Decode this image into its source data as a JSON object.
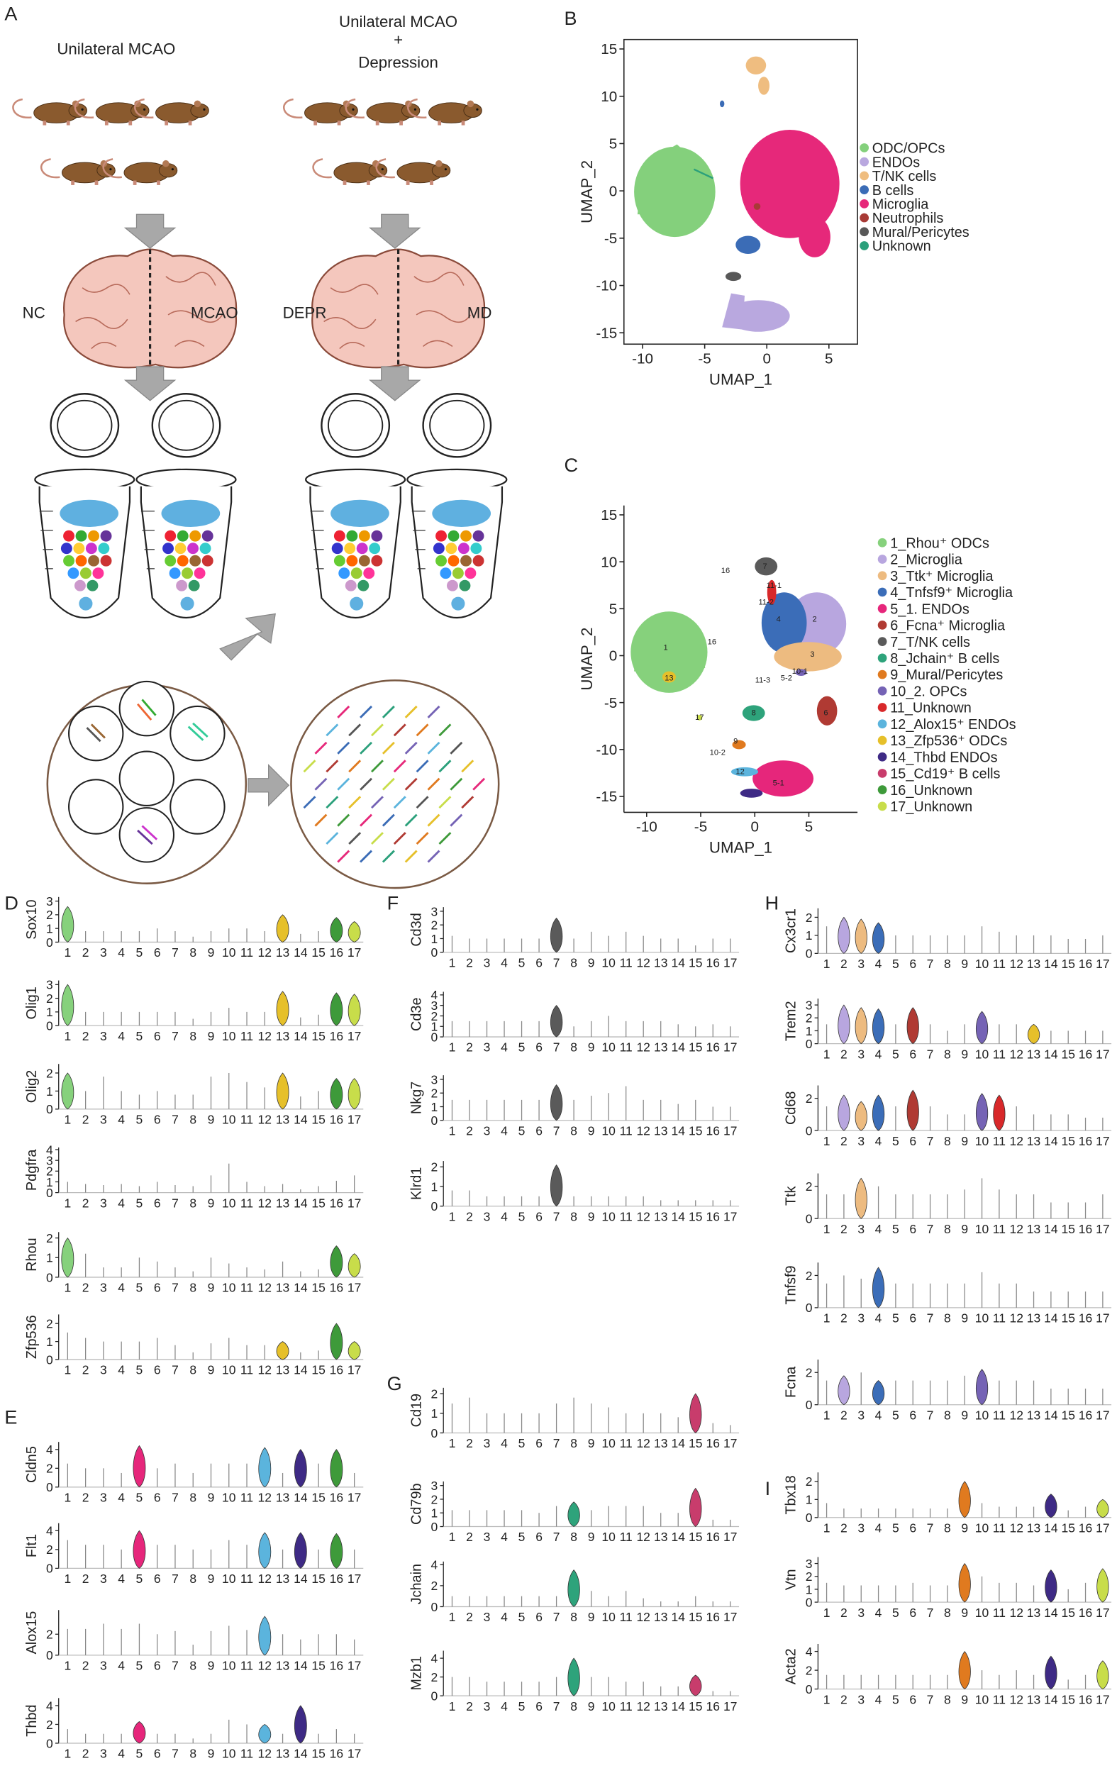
{
  "panel_a": {
    "label": "A",
    "left_title": "Unilateral MCAO",
    "right_title_1": "Unilateral MCAO",
    "right_title_2": "+",
    "right_title_3": "Depression",
    "brain_left_1": "NC",
    "brain_left_2": "MCAO",
    "brain_right_1": "DEPR",
    "brain_right_2": "MD"
  },
  "panel_b": {
    "label": "B",
    "xlabel": "UMAP_1",
    "ylabel": "UMAP_2",
    "xlim": [
      -11.5,
      7.3
    ],
    "ylim": [
      -16.2,
      16
    ],
    "xticks": [
      -10,
      -5,
      0,
      5
    ],
    "yticks": [
      -15,
      -10,
      -5,
      0,
      5,
      10,
      15
    ],
    "legend": [
      {
        "name": "ODC/OPCs",
        "color": "#84d07c"
      },
      {
        "name": "ENDOs",
        "color": "#b9a8df"
      },
      {
        "name": "T/NK cells",
        "color": "#efbd80"
      },
      {
        "name": "B cells",
        "color": "#3b6cb6"
      },
      {
        "name": "Microglia",
        "color": "#e6287a"
      },
      {
        "name": "Neutrophils",
        "color": "#a83a36"
      },
      {
        "name": "Mural/Pericytes",
        "color": "#585858"
      },
      {
        "name": "Unknown",
        "color": "#2ba07b"
      }
    ]
  },
  "panel_c": {
    "label": "C",
    "xlabel": "UMAP_1",
    "ylabel": "UMAP_2",
    "xlim": [
      -12.1,
      9.5
    ],
    "ylim": [
      -16.7,
      16
    ],
    "xticks": [
      -10,
      -5,
      0,
      5
    ],
    "yticks": [
      -15,
      -10,
      -5,
      0,
      5,
      10,
      15
    ],
    "cluster_labels": [
      "7",
      "11-1",
      "16",
      "11-2",
      "4",
      "2",
      "3",
      "1",
      "16",
      "13",
      "11-3",
      "5-2",
      "10-1",
      "6",
      "17",
      "8",
      "9",
      "10-2",
      "12",
      "5-1"
    ],
    "legend": [
      {
        "name": "1_Rhou⁺ ODCs",
        "color": "#86d17c"
      },
      {
        "name": "2_Microglia",
        "color": "#b8a6df"
      },
      {
        "name": "3_Ttk⁺ Microglia",
        "color": "#edbb80"
      },
      {
        "name": "4_Tnfsf9⁺ Microglia",
        "color": "#3b6db8"
      },
      {
        "name": "5_1. ENDOs",
        "color": "#e6267b"
      },
      {
        "name": "6_Fcna⁺ Microglia",
        "color": "#b03a33"
      },
      {
        "name": "7_T/NK cells",
        "color": "#5a5a5a"
      },
      {
        "name": "8_Jchain⁺ B cells",
        "color": "#2ea37b"
      },
      {
        "name": "9_Mural/Pericytes",
        "color": "#e07a1f"
      },
      {
        "name": "10_2. OPCs",
        "color": "#7563b5"
      },
      {
        "name": "11_Unknown",
        "color": "#d8282a"
      },
      {
        "name": "12_Alox15⁺ ENDOs",
        "color": "#5bb4dd"
      },
      {
        "name": "13_Zfp536⁺ ODCs",
        "color": "#e6c02a"
      },
      {
        "name": "14_Thbd ENDOs",
        "color": "#3e2a85"
      },
      {
        "name": "15_Cd19⁺ B cells",
        "color": "#c83c6c"
      },
      {
        "name": "16_Unknown",
        "color": "#3e9a3a"
      },
      {
        "name": "17_Unknown",
        "color": "#c8dd4a"
      }
    ]
  },
  "clusters": [
    "1",
    "2",
    "3",
    "4",
    "5",
    "6",
    "7",
    "8",
    "9",
    "10",
    "11",
    "12",
    "13",
    "14",
    "15",
    "16",
    "17"
  ],
  "violin_panels": {
    "D": {
      "label": "D",
      "genes": [
        {
          "name": "Sox10",
          "ylim": [
            0,
            3.3
          ],
          "yticks": [
            0,
            1,
            2,
            3
          ],
          "values": [
            2.6,
            0.8,
            0.8,
            0.8,
            0.8,
            1.0,
            0.8,
            0.4,
            0.8,
            1.0,
            1.0,
            0.8,
            2.0,
            0.6,
            0.8,
            1.8,
            1.5
          ],
          "violins": [
            "1",
            "13",
            "16",
            "17"
          ]
        },
        {
          "name": "Olig1",
          "ylim": [
            0,
            3.3
          ],
          "yticks": [
            0,
            1,
            2,
            3
          ],
          "values": [
            3.0,
            1.0,
            1.0,
            1.0,
            1.0,
            1.0,
            1.0,
            0.5,
            1.0,
            1.3,
            1.0,
            1.0,
            2.5,
            0.6,
            0.8,
            2.4,
            2.3
          ],
          "violins": [
            "1",
            "13",
            "16",
            "17"
          ]
        },
        {
          "name": "Olig2",
          "ylim": [
            0,
            2.5
          ],
          "yticks": [
            0,
            1,
            2
          ],
          "values": [
            2.0,
            1.0,
            1.8,
            1.0,
            0.8,
            1.0,
            0.8,
            0.8,
            1.8,
            2.0,
            1.5,
            1.2,
            2.0,
            0.7,
            1.0,
            1.7,
            1.7
          ],
          "violins": [
            "1",
            "13",
            "16",
            "17"
          ]
        },
        {
          "name": "Pdgfra",
          "ylim": [
            0,
            4.2
          ],
          "yticks": [
            0,
            1,
            2,
            3,
            4
          ],
          "values": [
            1.0,
            0.8,
            0.7,
            0.8,
            0.6,
            1.0,
            0.7,
            0.6,
            1.6,
            2.7,
            1.0,
            0.6,
            0.8,
            0.3,
            0.6,
            1.1,
            1.6
          ],
          "violins": []
        },
        {
          "name": "Rhou",
          "ylim": [
            0,
            2.3
          ],
          "yticks": [
            0,
            1,
            2
          ],
          "values": [
            2.0,
            1.2,
            0.5,
            0.5,
            1.0,
            0.8,
            0.5,
            0.3,
            1.0,
            0.7,
            0.5,
            0.4,
            0.8,
            0.3,
            0.4,
            1.6,
            1.2
          ],
          "violins": [
            "1",
            "16",
            "17"
          ]
        },
        {
          "name": "Zfp536",
          "ylim": [
            0,
            2.5
          ],
          "yticks": [
            0,
            1,
            2
          ],
          "values": [
            1.5,
            1.2,
            1.0,
            1.0,
            1.0,
            1.2,
            0.8,
            0.4,
            0.9,
            1.2,
            0.8,
            0.8,
            1.0,
            0.4,
            0.5,
            2.0,
            1.0
          ],
          "violins": [
            "13",
            "16",
            "17"
          ]
        }
      ]
    },
    "E": {
      "label": "E",
      "genes": [
        {
          "name": "Cldn5",
          "ylim": [
            0,
            4.8
          ],
          "yticks": [
            0,
            2,
            4
          ],
          "values": [
            2.5,
            2.0,
            2.0,
            1.5,
            4.4,
            2.0,
            2.5,
            1.5,
            2.5,
            2.5,
            2.5,
            4.2,
            1.5,
            4.0,
            2.5,
            4.0,
            1.5
          ],
          "violins": [
            "5",
            "12",
            "14",
            "16"
          ]
        },
        {
          "name": "Flt1",
          "ylim": [
            0,
            4.8
          ],
          "yticks": [
            0,
            2,
            4
          ],
          "values": [
            3.0,
            2.5,
            2.5,
            2.0,
            4.0,
            2.5,
            2.5,
            2.0,
            2.0,
            3.0,
            2.5,
            3.8,
            2.0,
            3.8,
            2.0,
            3.7,
            2.0
          ],
          "violins": [
            "5",
            "12",
            "14",
            "16"
          ]
        },
        {
          "name": "Alox15",
          "ylim": [
            0,
            4.3
          ],
          "yticks": [
            0,
            2
          ],
          "values": [
            2.5,
            2.5,
            3.0,
            2.5,
            3.0,
            2.0,
            2.3,
            1.0,
            2.3,
            2.8,
            2.4,
            3.7,
            2.0,
            1.5,
            2.0,
            2.0,
            1.5
          ],
          "violins": [
            "12"
          ]
        },
        {
          "name": "Thbd",
          "ylim": [
            0,
            4.8
          ],
          "yticks": [
            0,
            2,
            4
          ],
          "values": [
            1.5,
            1.0,
            1.0,
            1.0,
            2.3,
            1.0,
            1.0,
            0.5,
            1.0,
            2.5,
            2.0,
            2.0,
            1.0,
            4.0,
            1.0,
            1.5,
            1.0
          ],
          "violins": [
            "5",
            "12",
            "14"
          ]
        }
      ]
    },
    "F": {
      "label": "F",
      "genes": [
        {
          "name": "Cd3d",
          "ylim": [
            0,
            3.3
          ],
          "yticks": [
            0,
            1,
            2,
            3
          ],
          "values": [
            1.2,
            1.0,
            1.0,
            1.0,
            1.0,
            1.0,
            2.5,
            1.0,
            1.5,
            1.2,
            1.5,
            1.2,
            1.0,
            1.0,
            0.5,
            1.0,
            1.0
          ],
          "violins": [
            "7"
          ]
        },
        {
          "name": "Cd3e",
          "ylim": [
            0,
            4.3
          ],
          "yticks": [
            0,
            1,
            2,
            3,
            4
          ],
          "values": [
            1.5,
            1.5,
            1.5,
            1.5,
            1.5,
            1.5,
            3.0,
            1.0,
            1.5,
            2.0,
            1.5,
            1.5,
            1.5,
            1.2,
            1.0,
            1.2,
            1.0
          ],
          "violins": [
            "7"
          ]
        },
        {
          "name": "Nkg7",
          "ylim": [
            0,
            3.3
          ],
          "yticks": [
            0,
            1,
            2,
            3
          ],
          "values": [
            1.5,
            1.5,
            1.5,
            1.5,
            1.5,
            1.5,
            2.6,
            1.5,
            1.8,
            2.0,
            2.5,
            1.5,
            1.5,
            1.2,
            1.5,
            1.0,
            1.0
          ],
          "violins": [
            "7"
          ]
        },
        {
          "name": "Klrd1",
          "ylim": [
            0,
            2.3
          ],
          "yticks": [
            0,
            1,
            2
          ],
          "values": [
            0.8,
            0.8,
            0.5,
            0.5,
            0.5,
            0.5,
            2.1,
            0.5,
            0.5,
            0.5,
            0.5,
            0.5,
            0.3,
            0.3,
            0.3,
            0.3,
            0.3
          ],
          "violins": [
            "7"
          ]
        }
      ]
    },
    "G": {
      "label": "G",
      "genes": [
        {
          "name": "Cd19",
          "ylim": [
            0,
            2.3
          ],
          "yticks": [
            0,
            1,
            2
          ],
          "values": [
            1.5,
            1.8,
            1.0,
            1.0,
            1.0,
            1.0,
            1.5,
            1.8,
            1.5,
            1.3,
            1.0,
            1.0,
            1.0,
            0.8,
            2.0,
            0.5,
            0.4
          ],
          "violins": [
            "15"
          ]
        },
        {
          "name": "Cd79b",
          "ylim": [
            0,
            3.3
          ],
          "yticks": [
            0,
            1,
            2,
            3
          ],
          "values": [
            1.2,
            1.2,
            1.2,
            1.2,
            1.2,
            1.0,
            1.5,
            1.8,
            1.2,
            1.5,
            1.5,
            1.5,
            1.0,
            1.0,
            2.8,
            0.5,
            0.5
          ],
          "violins": [
            "8",
            "15"
          ]
        },
        {
          "name": "Jchain",
          "ylim": [
            0,
            4.3
          ],
          "yticks": [
            0,
            2,
            4
          ],
          "values": [
            1.0,
            1.0,
            1.0,
            1.0,
            1.0,
            1.0,
            1.0,
            3.5,
            1.5,
            1.0,
            1.5,
            0.8,
            0.5,
            0.5,
            1.0,
            0.5,
            0.5
          ],
          "violins": [
            "8"
          ]
        },
        {
          "name": "Mzb1",
          "ylim": [
            0,
            4.8
          ],
          "yticks": [
            0,
            2,
            4
          ],
          "values": [
            2.0,
            2.0,
            1.5,
            1.5,
            1.5,
            1.5,
            2.0,
            4.0,
            2.0,
            2.0,
            1.5,
            1.5,
            1.0,
            1.0,
            2.2,
            0.5,
            0.5
          ],
          "violins": [
            "8",
            "15"
          ]
        }
      ]
    },
    "H": {
      "label": "H",
      "genes": [
        {
          "name": "Cx3cr1",
          "ylim": [
            0,
            2.5
          ],
          "yticks": [
            0,
            1,
            2
          ],
          "values": [
            1.5,
            2.0,
            1.9,
            1.7,
            1.0,
            1.0,
            1.0,
            1.0,
            1.0,
            1.5,
            1.2,
            1.0,
            1.0,
            1.0,
            0.8,
            0.8,
            1.0
          ],
          "violins": [
            "2",
            "3",
            "4"
          ]
        },
        {
          "name": "Trem2",
          "ylim": [
            0,
            3.5
          ],
          "yticks": [
            0,
            1,
            2,
            3
          ],
          "values": [
            1.5,
            3.0,
            2.8,
            2.7,
            1.5,
            2.8,
            1.5,
            1.0,
            1.5,
            2.5,
            1.5,
            1.5,
            1.5,
            1.0,
            1.0,
            1.0,
            1.0
          ],
          "violins": [
            "2",
            "3",
            "4",
            "6",
            "10",
            "13"
          ]
        },
        {
          "name": "Cd68",
          "ylim": [
            0,
            2.8
          ],
          "yticks": [
            0,
            2
          ],
          "values": [
            1.5,
            2.2,
            1.8,
            2.2,
            1.5,
            2.5,
            1.5,
            1.0,
            1.0,
            2.3,
            2.2,
            1.5,
            1.0,
            1.0,
            1.0,
            0.8,
            0.8
          ],
          "violins": [
            "2",
            "3",
            "4",
            "6",
            "10",
            "11"
          ]
        },
        {
          "name": "Ttk",
          "ylim": [
            0,
            2.8
          ],
          "yticks": [
            0,
            2
          ],
          "values": [
            1.5,
            1.5,
            2.5,
            2.0,
            1.5,
            1.5,
            1.5,
            1.5,
            1.8,
            2.5,
            1.8,
            1.5,
            1.5,
            1.0,
            1.0,
            1.0,
            1.5
          ],
          "violins": [
            "3"
          ]
        },
        {
          "name": "Tnfsf9",
          "ylim": [
            0,
            2.8
          ],
          "yticks": [
            0,
            2
          ],
          "values": [
            1.5,
            2.0,
            1.8,
            2.5,
            1.5,
            1.5,
            1.5,
            1.5,
            1.5,
            2.2,
            1.5,
            1.5,
            1.0,
            1.0,
            1.0,
            1.0,
            1.0
          ],
          "violins": [
            "4"
          ]
        },
        {
          "name": "Fcna",
          "ylim": [
            0,
            2.8
          ],
          "yticks": [
            0,
            2
          ],
          "values": [
            1.5,
            1.8,
            2.0,
            1.5,
            1.5,
            1.5,
            1.5,
            1.5,
            1.8,
            2.2,
            1.5,
            1.5,
            1.5,
            1.0,
            1.0,
            1.0,
            1.0
          ],
          "violins": [
            "2",
            "4",
            "10"
          ]
        }
      ]
    },
    "I": {
      "label": "I",
      "genes": [
        {
          "name": "Tbx18",
          "ylim": [
            0,
            2.5
          ],
          "yticks": [
            0,
            1,
            2
          ],
          "values": [
            0.8,
            0.5,
            0.5,
            0.5,
            0.5,
            0.5,
            0.5,
            0.5,
            2.0,
            0.8,
            0.6,
            0.6,
            0.6,
            1.3,
            0.4,
            0.6,
            1.0
          ],
          "violins": [
            "9",
            "14",
            "17"
          ]
        },
        {
          "name": "Vtn",
          "ylim": [
            0,
            3.5
          ],
          "yticks": [
            0,
            1,
            2,
            3
          ],
          "values": [
            1.5,
            1.3,
            1.3,
            1.3,
            1.3,
            1.5,
            1.3,
            1.3,
            3.0,
            2.0,
            1.5,
            1.5,
            1.3,
            2.5,
            1.0,
            1.5,
            2.6
          ],
          "violins": [
            "9",
            "14",
            "17"
          ]
        },
        {
          "name": "Acta2",
          "ylim": [
            0,
            4.8
          ],
          "yticks": [
            0,
            2,
            4
          ],
          "values": [
            1.5,
            1.5,
            1.5,
            1.5,
            1.5,
            1.5,
            1.5,
            1.5,
            4.0,
            2.0,
            1.5,
            2.0,
            1.5,
            3.5,
            1.0,
            1.5,
            3.0
          ],
          "violins": [
            "9",
            "14",
            "17"
          ]
        }
      ]
    }
  }
}
